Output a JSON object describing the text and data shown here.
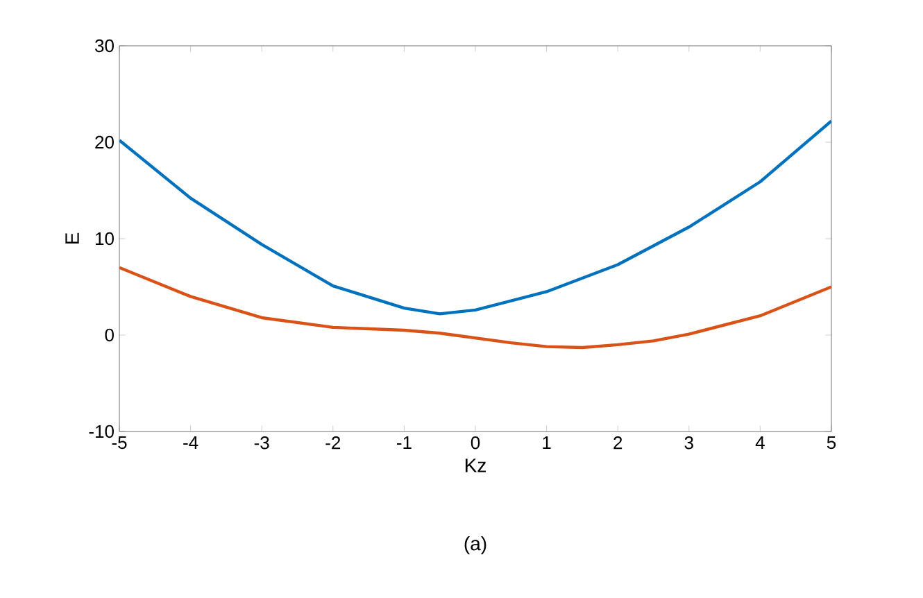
{
  "chart_data": {
    "type": "line",
    "xlabel": "Kz",
    "ylabel": "E",
    "annotations": [
      "(a)"
    ],
    "xlim": [
      -5,
      5
    ],
    "ylim": [
      -10,
      30
    ],
    "xticks": [
      -5,
      -4,
      -3,
      -2,
      -1,
      0,
      1,
      2,
      3,
      4,
      5
    ],
    "yticks": [
      -10,
      0,
      10,
      20,
      30
    ],
    "grid": false,
    "series": [
      {
        "color": "#0072bd",
        "x": [
          -5,
          -4,
          -3,
          -2,
          -1,
          -0.5,
          0,
          1,
          2,
          3,
          4,
          5
        ],
        "values": [
          20.2,
          14.2,
          9.4,
          5.1,
          2.8,
          2.2,
          2.6,
          4.5,
          7.3,
          11.2,
          15.9,
          22.2
        ]
      },
      {
        "color": "#d95319",
        "x": [
          -5,
          -4,
          -3,
          -2,
          -1,
          -0.5,
          0,
          0.5,
          1,
          1.5,
          2,
          2.5,
          3,
          4,
          5
        ],
        "values": [
          7.0,
          4.0,
          1.8,
          0.8,
          0.5,
          0.2,
          -0.3,
          -0.8,
          -1.2,
          -1.3,
          -1.0,
          -0.6,
          0.1,
          2.0,
          5.0
        ]
      }
    ]
  }
}
